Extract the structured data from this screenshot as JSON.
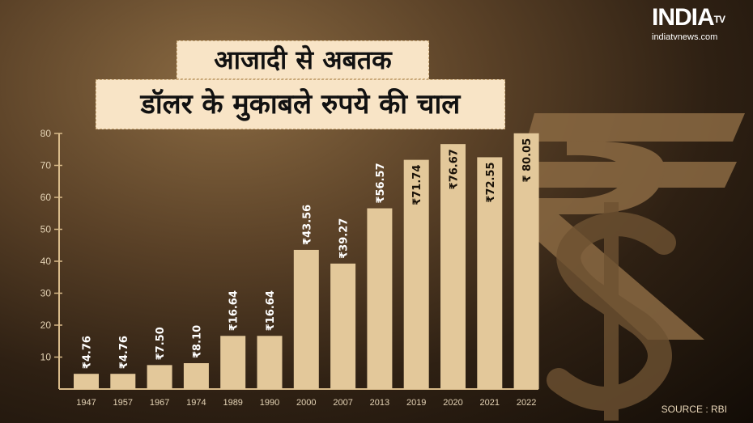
{
  "header": {
    "title_line1": "आजादी से अबतक",
    "title_line2": "डॉलर के मुकाबले रुपये की चाल"
  },
  "logo": {
    "text": "INDIA",
    "superscript": "TV",
    "url": "indiatvnews.com"
  },
  "source": "SOURCE : RBI",
  "colors": {
    "bar": "#e3c89a",
    "axis": "#d9bb8a",
    "title_bg": "#f8e4c6"
  },
  "chart_data": {
    "type": "bar",
    "categories": [
      "1947",
      "1957",
      "1967",
      "1974",
      "1989",
      "1990",
      "2000",
      "2007",
      "2013",
      "2019",
      "2020",
      "2021",
      "2022"
    ],
    "values": [
      4.76,
      4.76,
      7.5,
      8.1,
      16.64,
      16.64,
      43.56,
      39.27,
      56.57,
      71.74,
      76.67,
      72.55,
      80.05
    ],
    "data_labels": [
      "₹4.76",
      "₹4.76",
      "₹7.50",
      "₹8.10",
      "₹16.64",
      "₹16.64",
      "₹43.56",
      "₹39.27",
      "₹56.57",
      "₹71.74",
      "₹76.67",
      "₹72.55",
      "₹ 80.05"
    ],
    "ylim": [
      0,
      80
    ],
    "yticks": [
      10,
      20,
      30,
      40,
      50,
      60,
      70,
      80
    ],
    "grid": false,
    "title": "",
    "xlabel": "",
    "ylabel": ""
  }
}
